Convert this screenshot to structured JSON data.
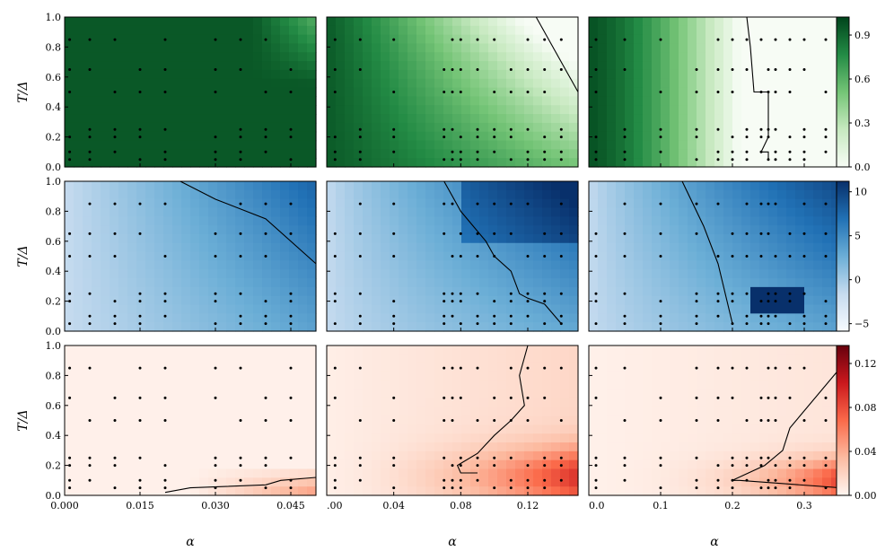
{
  "chart_data": {
    "type": "heatmap",
    "description_layout": "3x3 grid of contour heatmaps with sampled points",
    "ylabel": "T/Δ",
    "xlabel": "α",
    "y_ticks": [
      "0.0",
      "0.2",
      "0.4",
      "0.6",
      "0.8",
      "1.0"
    ],
    "ylim": [
      0,
      1
    ],
    "columns": [
      {
        "xlim": [
          0,
          0.05
        ],
        "x_ticks": [
          0,
          0.015,
          0.03,
          0.045
        ],
        "x_tick_labels": [
          "0.000",
          "0.015",
          "0.030",
          "0.045"
        ]
      },
      {
        "xlim": [
          0,
          0.15
        ],
        "x_ticks": [
          0,
          0.04,
          0.08,
          0.12
        ],
        "x_tick_labels": [
          ".00",
          "0.04",
          "0.08",
          "0.12"
        ]
      },
      {
        "xlim": [
          0,
          0.35
        ],
        "x_ticks": [
          0,
          0.1,
          0.2,
          0.3
        ],
        "x_tick_labels": [
          "0.0",
          "0.1",
          "0.2",
          "0.3"
        ]
      }
    ],
    "rows": [
      {
        "name": "",
        "colormap": "Greens",
        "colors": [
          "#f7fcf5",
          "#c7e9c0",
          "#74c476",
          "#238b45",
          "#00441b"
        ],
        "clim": [
          0,
          1.15
        ],
        "colorbar_ticks": [
          "0.0",
          "0.3",
          "0.6",
          "0.9"
        ]
      },
      {
        "name": "",
        "colormap": "Blues",
        "colors": [
          "#f7fbff",
          "#c6dbef",
          "#6baed6",
          "#2171b5",
          "#08306b"
        ],
        "clim": [
          -6,
          10
        ],
        "colorbar_ticks": [
          "−5",
          "0",
          "5",
          "10"
        ]
      },
      {
        "name": "",
        "colormap": "Reds",
        "colors": [
          "#fff5f0",
          "#fcbba1",
          "#fb6a4a",
          "#cb181d",
          "#67000d"
        ],
        "clim": [
          0,
          0.15
        ],
        "colorbar_ticks": [
          "0.00",
          "0.04",
          "0.08",
          "0.12"
        ]
      }
    ],
    "sample_T": [
      0.05,
      0.1,
      0.2,
      0.25,
      0.5,
      0.65,
      0.85,
      1.0
    ],
    "sample_alpha_by_column": [
      [
        0.001,
        0.005,
        0.01,
        0.015,
        0.02,
        0.03,
        0.035,
        0.04,
        0.045,
        0.05
      ],
      [
        0.005,
        0.02,
        0.04,
        0.07,
        0.075,
        0.08,
        0.09,
        0.1,
        0.11,
        0.12,
        0.13,
        0.14,
        0.15
      ],
      [
        0.01,
        0.05,
        0.1,
        0.15,
        0.18,
        0.2,
        0.22,
        0.24,
        0.25,
        0.26,
        0.28,
        0.3,
        0.33
      ]
    ],
    "contours": [
      [
        null,
        [
          [
            0.125,
            1.0
          ],
          [
            0.15,
            0.5
          ]
        ],
        [
          [
            0.22,
            1.0
          ],
          [
            0.225,
            0.8
          ],
          [
            0.23,
            0.5
          ],
          [
            0.25,
            0.5
          ],
          [
            0.25,
            0.2
          ],
          [
            0.24,
            0.1
          ],
          [
            0.25,
            0.1
          ],
          [
            0.25,
            0.05
          ]
        ]
      ],
      [
        [
          [
            0.023,
            1.0
          ],
          [
            0.03,
            0.88
          ],
          [
            0.04,
            0.75
          ],
          [
            0.05,
            0.45
          ]
        ],
        [
          [
            0.07,
            1.0
          ],
          [
            0.08,
            0.8
          ],
          [
            0.095,
            0.6
          ],
          [
            0.1,
            0.5
          ],
          [
            0.11,
            0.4
          ],
          [
            0.115,
            0.25
          ],
          [
            0.12,
            0.22
          ],
          [
            0.13,
            0.18
          ],
          [
            0.14,
            0.05
          ]
        ],
        [
          [
            0.13,
            1.0
          ],
          [
            0.16,
            0.7
          ],
          [
            0.18,
            0.45
          ],
          [
            0.19,
            0.25
          ],
          [
            0.2,
            0.05
          ]
        ]
      ],
      [
        [
          [
            0.02,
            0.02
          ],
          [
            0.025,
            0.05
          ],
          [
            0.04,
            0.07
          ],
          [
            0.043,
            0.1
          ],
          [
            0.05,
            0.12
          ]
        ],
        [
          [
            0.12,
            1.0
          ],
          [
            0.115,
            0.8
          ],
          [
            0.118,
            0.6
          ],
          [
            0.11,
            0.5
          ],
          [
            0.1,
            0.4
          ],
          [
            0.09,
            0.28
          ],
          [
            0.078,
            0.2
          ],
          [
            0.08,
            0.15
          ],
          [
            0.09,
            0.15
          ]
        ],
        [
          [
            0.35,
            0.85
          ],
          [
            0.28,
            0.45
          ],
          [
            0.27,
            0.3
          ],
          [
            0.245,
            0.2
          ],
          [
            0.2,
            0.1
          ],
          [
            0.21,
            0.1
          ],
          [
            0.35,
            0.05
          ]
        ]
      ]
    ]
  }
}
